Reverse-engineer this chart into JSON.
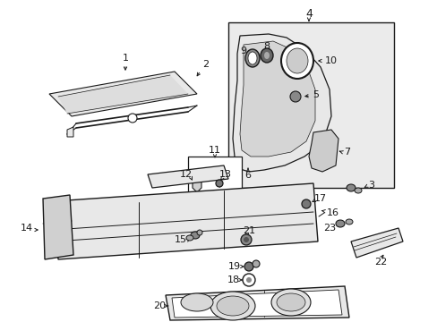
{
  "background_color": "#ffffff",
  "line_color": "#1a1a1a",
  "fill_light": "#e8e8e8",
  "fill_mid": "#d0d0d0",
  "fill_box": "#e0e0e0",
  "fig_width": 4.89,
  "fig_height": 3.6,
  "dpi": 100
}
